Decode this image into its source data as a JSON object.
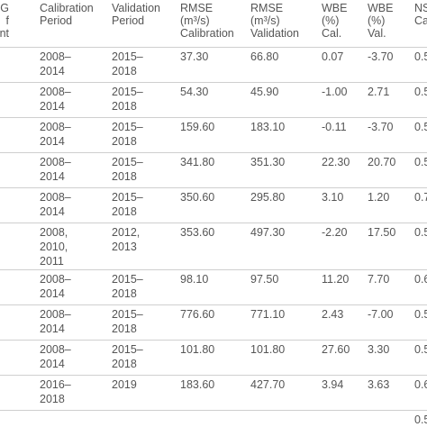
{
  "table": {
    "header": [
      [
        "G",
        "f",
        "cient"
      ],
      [
        "Calibration",
        "Period"
      ],
      [
        "Validation",
        "Period"
      ],
      [
        "RMSE",
        "(m³/s)",
        "Calibration"
      ],
      [
        "RMSE",
        "(m³/s)",
        "Validation"
      ],
      [
        "WBE",
        "(%)",
        "Cal."
      ],
      [
        "WBE",
        "(%)",
        "Val."
      ],
      [
        "NS",
        "Ca"
      ]
    ],
    "rows": [
      [
        [
          "2008–",
          "2014"
        ],
        [
          "2015–",
          "2018"
        ],
        "37.30",
        "66.80",
        "0.07",
        "-3.70",
        "0.5"
      ],
      [
        [
          "2008–",
          "2014"
        ],
        [
          "2015–",
          "2018"
        ],
        "54.30",
        "45.90",
        "-1.00",
        "2.71",
        "0.5"
      ],
      [
        [
          "2008–",
          "2014"
        ],
        [
          "2015–",
          "2018"
        ],
        "159.60",
        "183.10",
        "-0.11",
        "-3.70",
        "0.5"
      ],
      [
        [
          "2008–",
          "2014"
        ],
        [
          "2015–",
          "2018"
        ],
        "341.80",
        "351.30",
        "22.30",
        "20.70",
        "0.5"
      ],
      [
        [
          "2008–",
          "2014"
        ],
        [
          "2015–",
          "2018"
        ],
        "350.60",
        "295.80",
        "3.10",
        "1.20",
        "0.7"
      ],
      [
        [
          "2008,",
          "2010,",
          "2011"
        ],
        [
          "2012,",
          "2013"
        ],
        "353.60",
        "497.30",
        "-2.20",
        "17.50",
        "0.5"
      ],
      [
        [
          "2008–",
          "2014"
        ],
        [
          "2015–",
          "2018"
        ],
        "98.10",
        "97.50",
        "11.20",
        "7.70",
        "0.6"
      ],
      [
        [
          "2008–",
          "2014"
        ],
        [
          "2015–",
          "2018"
        ],
        "776.60",
        "771.10",
        "2.43",
        "-7.00",
        "0.5"
      ],
      [
        [
          "2008–",
          "2014"
        ],
        [
          "2015–",
          "2018"
        ],
        "101.80",
        "101.80",
        "27.60",
        "3.30",
        "0.5"
      ],
      [
        [
          "2016–",
          "2018"
        ],
        [
          "2019"
        ],
        "183.60",
        "427.70",
        "3.94",
        "3.63",
        "0.6"
      ]
    ],
    "footer": "0.5"
  }
}
